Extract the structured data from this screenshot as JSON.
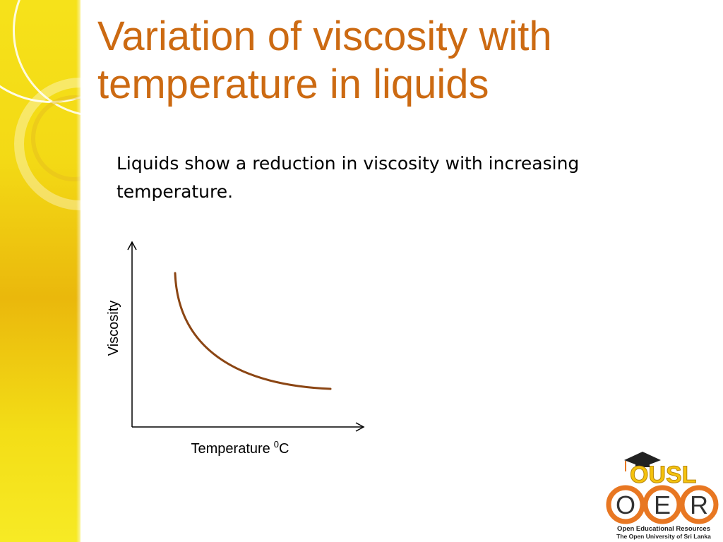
{
  "slide": {
    "title": "Variation of viscosity with temperature in liquids",
    "body": "Liquids show a reduction in viscosity with increasing temperature."
  },
  "diagram": {
    "y_label": "Viscosity",
    "x_label": "Temperature",
    "x_unit_superscript": "0",
    "x_unit": "C",
    "curve_color": "#8b4513",
    "axis_color": "#000000"
  },
  "logo": {
    "name": "OUSL",
    "letters": [
      "O",
      "E",
      "R"
    ],
    "line1": "Open Educational Resources",
    "line2": "The Open University of Sri Lanka",
    "accent": "#e87722",
    "brand": "#f4c20d"
  },
  "colors": {
    "title": "#cc6a12",
    "band": "#f3d915"
  }
}
